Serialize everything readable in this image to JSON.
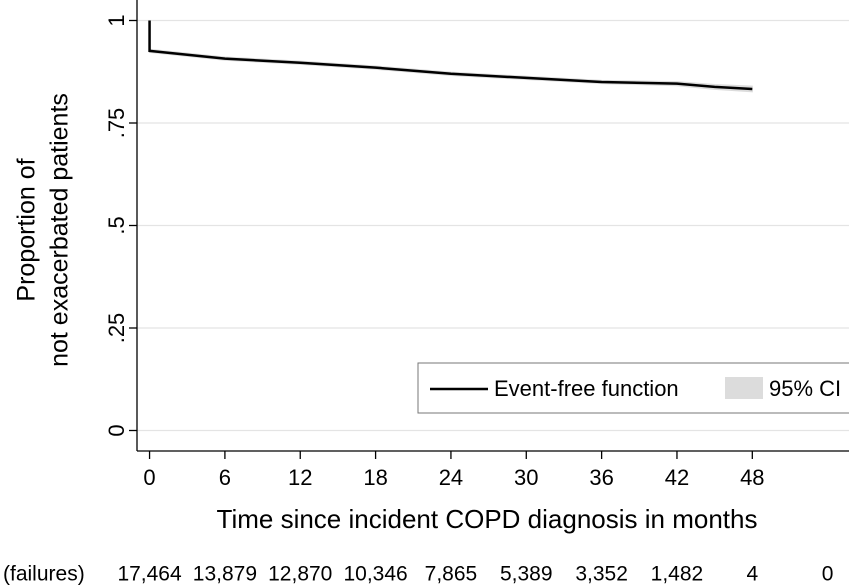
{
  "chart_data": {
    "type": "line",
    "xlabel": "Time since incident COPD diagnosis in months",
    "ylabel": [
      "Proportion of",
      "not exacerbated patients"
    ],
    "series": [
      {
        "name": "Event-free function",
        "color": "#000000",
        "x": [
          0,
          0,
          6,
          12,
          18,
          24,
          30,
          36,
          42,
          45,
          48
        ],
        "values": [
          1,
          0.926,
          0.907,
          0.897,
          0.885,
          0.87,
          0.86,
          0.85,
          0.846,
          0.838,
          0.833
        ]
      }
    ],
    "ci": {
      "name": "95% CI",
      "color": "#dcdcdc",
      "x": [
        0,
        6,
        12,
        18,
        24,
        30,
        36,
        42,
        45,
        48
      ],
      "lower": [
        0.922,
        0.903,
        0.893,
        0.881,
        0.866,
        0.856,
        0.846,
        0.841,
        0.832,
        0.826
      ],
      "upper": [
        0.93,
        0.911,
        0.901,
        0.889,
        0.874,
        0.864,
        0.854,
        0.851,
        0.844,
        0.84
      ]
    },
    "xlim": [
      -1,
      55.7
    ],
    "xticks": [
      0,
      6,
      12,
      18,
      24,
      30,
      36,
      42,
      48
    ],
    "ylim": [
      -0.05,
      1.05
    ],
    "yticks": [
      0,
      {
        "value": 0.25,
        "label": ".25"
      },
      {
        "value": 0.5,
        "label": ".5"
      },
      {
        "value": 0.75,
        "label": ".75"
      },
      1
    ],
    "grid": true,
    "legend": "bottom-right",
    "risk_table": {
      "label": "(failures)",
      "x": [
        0,
        6,
        12,
        18,
        24,
        30,
        36,
        42,
        48,
        54
      ],
      "values": [
        17464,
        13879,
        12870,
        10346,
        7865,
        5389,
        3352,
        1482,
        4,
        0
      ],
      "value_labels": [
        "17,464",
        "13,879",
        "12,870",
        "10,346",
        "7,865",
        "5,389",
        "3,352",
        "1,482",
        "4",
        "0"
      ]
    }
  }
}
